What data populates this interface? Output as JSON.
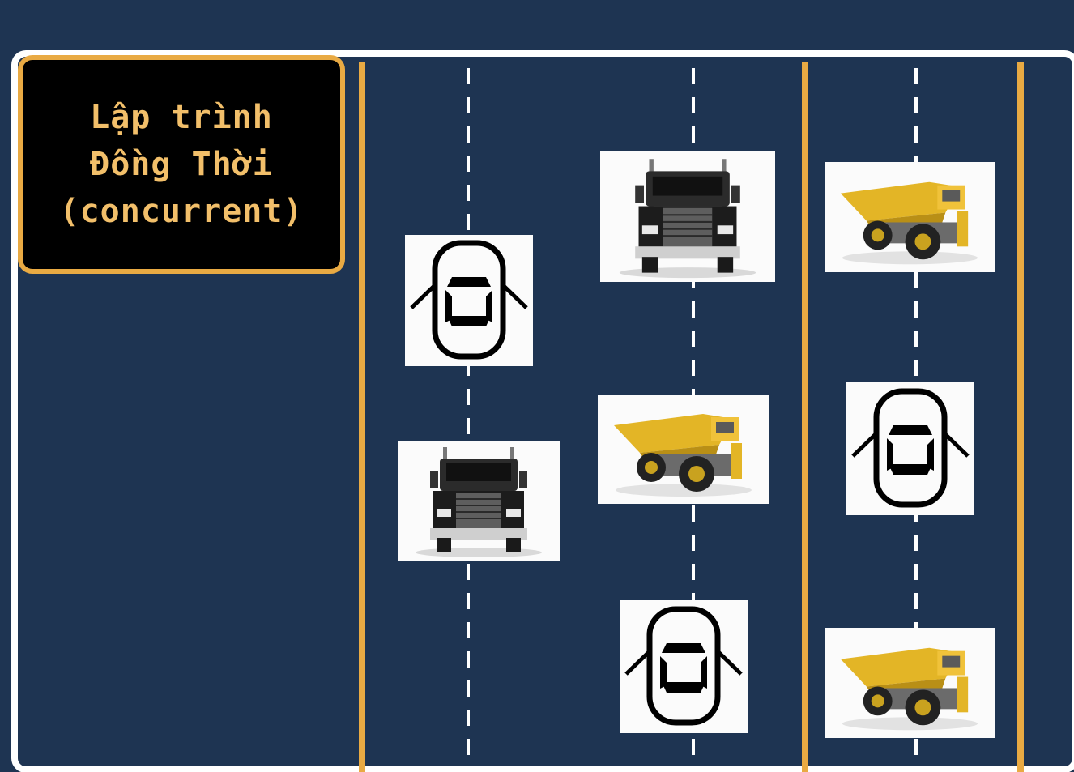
{
  "title": {
    "line1": "Lập trình",
    "line2": "Đồng Thời",
    "line3": "(concurrent)"
  },
  "colors": {
    "background": "#1e3452",
    "lane_border": "#e9aa43",
    "title_text": "#f2bf6a",
    "road_edge": "#ffffff"
  },
  "lanes": [
    {
      "name": "lane-1",
      "vehicles": [
        "car-door-icon",
        "semi-truck"
      ]
    },
    {
      "name": "lane-2",
      "vehicles": [
        "semi-truck",
        "dump-truck",
        "car-door-icon"
      ]
    },
    {
      "name": "lane-3",
      "vehicles": [
        "dump-truck",
        "car-door-icon",
        "dump-truck"
      ]
    }
  ]
}
